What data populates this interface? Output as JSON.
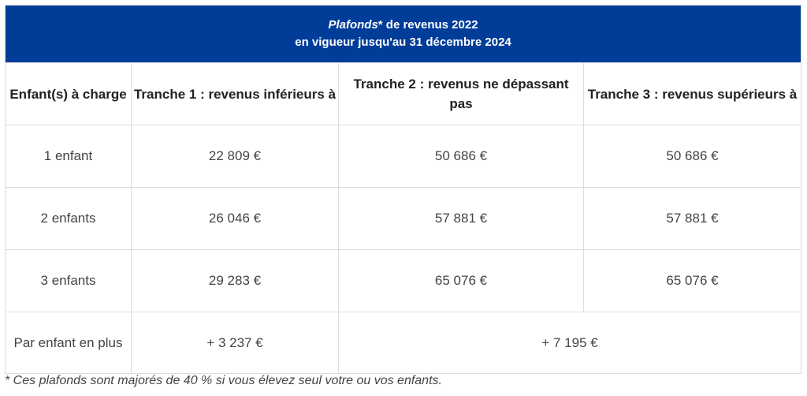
{
  "title": {
    "line1_em": "Plafonds",
    "line1_rest": "* de revenus 2022",
    "line2": "en vigueur jusqu'au 31 décembre 2024"
  },
  "headers": [
    "Enfant(s) à charge",
    "Tranche 1 : revenus inférieurs à",
    "Tranche 2 : revenus ne dépassant pas",
    "Tranche 3 : revenus supérieurs à"
  ],
  "rows": [
    {
      "label": "1 enfant",
      "t1": "22 809 €",
      "t2": "50 686 €",
      "t3": "50 686 €"
    },
    {
      "label": "2 enfants",
      "t1": "26 046 €",
      "t2": "57 881 €",
      "t3": "57 881 €"
    },
    {
      "label": "3 enfants",
      "t1": "29 283 €",
      "t2": "65 076 €",
      "t3": "65 076 €"
    }
  ],
  "extra_row": {
    "label": "Par enfant en plus",
    "t1": "+ 3 237 €",
    "t2_t3": "+ 7 195 €"
  },
  "footnote": "* Ces plafonds sont majorés de 40 % si vous élevez seul votre ou vos enfants."
}
